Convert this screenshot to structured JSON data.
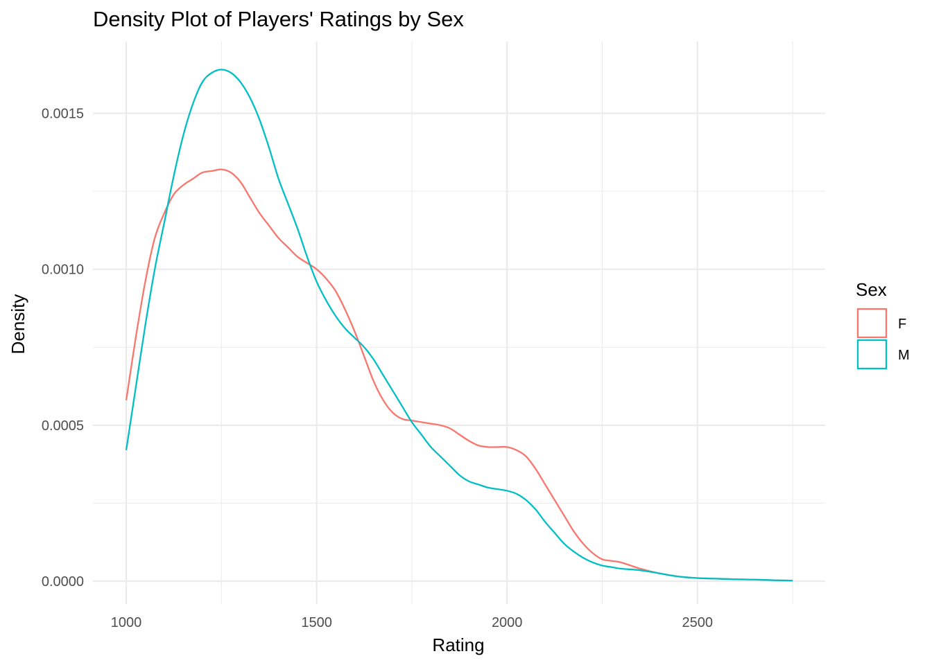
{
  "chart_data": {
    "type": "line",
    "title": "Density Plot of Players' Ratings by Sex",
    "xlabel": "Rating",
    "ylabel": "Density",
    "xlim": [
      1000,
      2750
    ],
    "ylim": [
      0,
      0.00165
    ],
    "x_ticks": [
      1000,
      1500,
      2000,
      2500
    ],
    "x_tick_labels": [
      "1000",
      "1500",
      "2000",
      "2500"
    ],
    "y_ticks": [
      0,
      0.0005,
      0.001,
      0.0015
    ],
    "y_tick_labels": [
      "0.0000",
      "0.0005",
      "0.0010",
      "0.0015"
    ],
    "grid": true,
    "legend": {
      "title": "Sex",
      "position": "right",
      "entries": [
        "F",
        "M"
      ]
    },
    "series": [
      {
        "name": "F",
        "color": "#F8766D",
        "x": [
          1000,
          1025,
          1050,
          1075,
          1100,
          1125,
          1150,
          1175,
          1200,
          1225,
          1250,
          1275,
          1300,
          1325,
          1350,
          1375,
          1400,
          1425,
          1450,
          1475,
          1500,
          1525,
          1550,
          1575,
          1600,
          1625,
          1650,
          1675,
          1700,
          1725,
          1750,
          1775,
          1800,
          1825,
          1850,
          1875,
          1900,
          1925,
          1950,
          1975,
          2000,
          2025,
          2050,
          2075,
          2100,
          2125,
          2150,
          2175,
          2200,
          2225,
          2250,
          2275,
          2300,
          2350,
          2400,
          2450,
          2500,
          2550,
          2600,
          2650,
          2700,
          2750
        ],
        "y": [
          0.00058,
          0.00078,
          0.00096,
          0.0011,
          0.00118,
          0.00124,
          0.00127,
          0.00129,
          0.00131,
          0.001315,
          0.00132,
          0.00131,
          0.00128,
          0.00123,
          0.00118,
          0.00114,
          0.0011,
          0.00107,
          0.00104,
          0.00102,
          0.001,
          0.00097,
          0.00093,
          0.00087,
          0.0008,
          0.00072,
          0.00064,
          0.00058,
          0.00054,
          0.00052,
          0.000515,
          0.00051,
          0.000505,
          0.0005,
          0.00049,
          0.00047,
          0.00045,
          0.000435,
          0.00043,
          0.00043,
          0.00043,
          0.00042,
          0.0004,
          0.00036,
          0.00031,
          0.00026,
          0.00021,
          0.00016,
          0.00012,
          9e-05,
          7e-05,
          6.5e-05,
          6e-05,
          4e-05,
          2.5e-05,
          1.5e-05,
          1e-05,
          8e-06,
          6e-06,
          5e-06,
          3e-06,
          2e-06
        ]
      },
      {
        "name": "M",
        "color": "#00BFC4",
        "x": [
          1000,
          1025,
          1050,
          1075,
          1100,
          1125,
          1150,
          1175,
          1200,
          1225,
          1250,
          1275,
          1300,
          1325,
          1350,
          1375,
          1400,
          1425,
          1450,
          1475,
          1500,
          1525,
          1550,
          1575,
          1600,
          1625,
          1650,
          1675,
          1700,
          1725,
          1750,
          1775,
          1800,
          1825,
          1850,
          1875,
          1900,
          1925,
          1950,
          1975,
          2000,
          2025,
          2050,
          2075,
          2100,
          2125,
          2150,
          2175,
          2200,
          2225,
          2250,
          2275,
          2300,
          2350,
          2400,
          2450,
          2500,
          2550,
          2600,
          2650,
          2700,
          2750
        ],
        "y": [
          0.00042,
          0.00062,
          0.00082,
          0.001,
          0.00115,
          0.0013,
          0.00143,
          0.00153,
          0.0016,
          0.00163,
          0.00164,
          0.00163,
          0.0016,
          0.00155,
          0.00148,
          0.00139,
          0.00129,
          0.00121,
          0.00113,
          0.00104,
          0.00096,
          0.0009,
          0.00085,
          0.00081,
          0.00078,
          0.00075,
          0.00071,
          0.00066,
          0.00061,
          0.00056,
          0.00051,
          0.00047,
          0.00043,
          0.0004,
          0.00037,
          0.00034,
          0.00032,
          0.00031,
          0.0003,
          0.000295,
          0.00029,
          0.00028,
          0.00026,
          0.00023,
          0.00019,
          0.000155,
          0.00012,
          9.5e-05,
          7.5e-05,
          6e-05,
          5e-05,
          4.5e-05,
          4e-05,
          3.5e-05,
          2.5e-05,
          1.5e-05,
          1e-05,
          8e-06,
          6e-06,
          5e-06,
          3e-06,
          2e-06
        ]
      }
    ]
  }
}
